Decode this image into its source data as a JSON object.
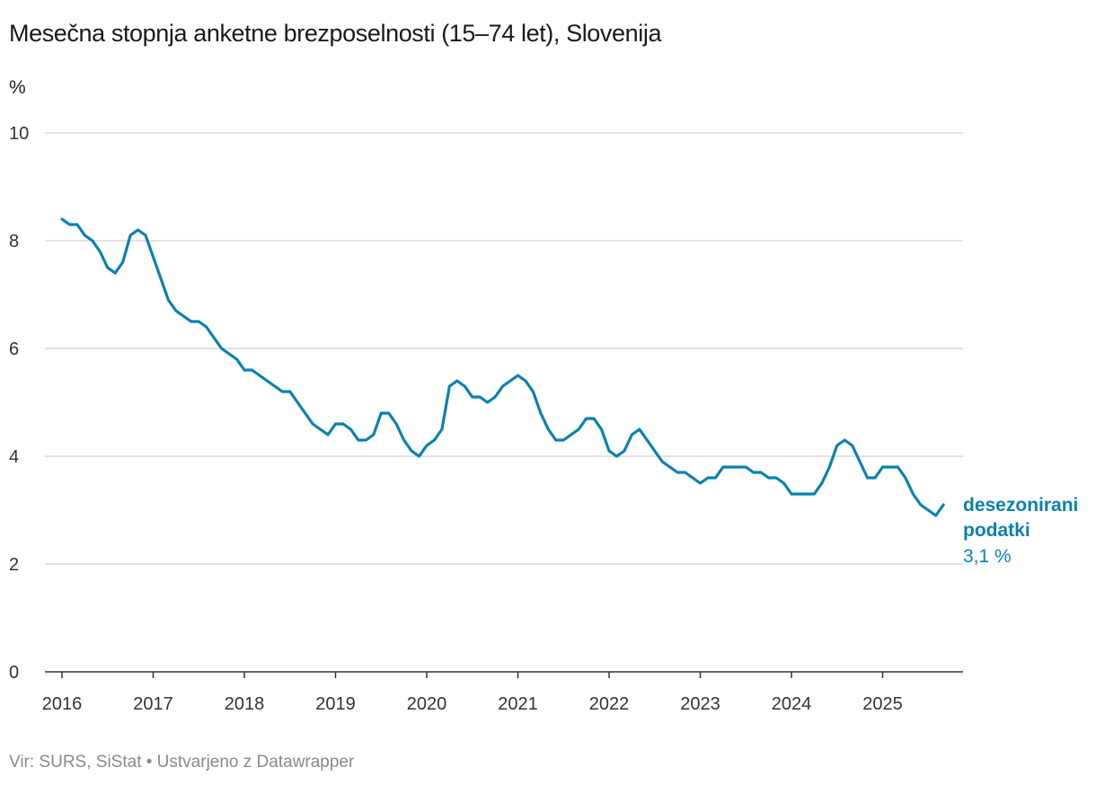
{
  "header": {
    "title": "Mesečna stopnja anketne brezposelnosti (15–74 let), Slovenija",
    "y_unit": "%"
  },
  "footer": {
    "source": "Vir: SURS, SiStat • Ustvarjeno z Datawrapper"
  },
  "colors": {
    "line": "#0a81b0",
    "grid": "#d0d0d0",
    "axis": "#333333"
  },
  "chart_data": {
    "type": "line",
    "title": "Mesečna stopnja anketne brezposelnosti (15–74 let), Slovenija",
    "ylabel": "%",
    "ylim": [
      0,
      10
    ],
    "yticks": [
      "0",
      "2",
      "4",
      "6",
      "8",
      "10"
    ],
    "xticks": [
      "2016",
      "2017",
      "2018",
      "2019",
      "2020",
      "2021",
      "2022",
      "2023",
      "2024",
      "2025"
    ],
    "grid": true,
    "series": [
      {
        "name": "desezonirani podatki",
        "end_label": "3,1 %",
        "start": "2016-01",
        "frequency": "monthly",
        "values": [
          8.4,
          8.3,
          8.3,
          8.1,
          8.0,
          7.8,
          7.5,
          7.4,
          7.6,
          8.1,
          8.2,
          8.1,
          7.7,
          7.3,
          6.9,
          6.7,
          6.6,
          6.5,
          6.5,
          6.4,
          6.2,
          6.0,
          5.9,
          5.8,
          5.6,
          5.6,
          5.5,
          5.4,
          5.3,
          5.2,
          5.2,
          5.0,
          4.8,
          4.6,
          4.5,
          4.4,
          4.6,
          4.6,
          4.5,
          4.3,
          4.3,
          4.4,
          4.8,
          4.8,
          4.6,
          4.3,
          4.1,
          4.0,
          4.2,
          4.3,
          4.5,
          5.3,
          5.4,
          5.3,
          5.1,
          5.1,
          5.0,
          5.1,
          5.3,
          5.4,
          5.5,
          5.4,
          5.2,
          4.8,
          4.5,
          4.3,
          4.3,
          4.4,
          4.5,
          4.7,
          4.7,
          4.5,
          4.1,
          4.0,
          4.1,
          4.4,
          4.5,
          4.3,
          4.1,
          3.9,
          3.8,
          3.7,
          3.7,
          3.6,
          3.5,
          3.6,
          3.6,
          3.8,
          3.8,
          3.8,
          3.8,
          3.7,
          3.7,
          3.6,
          3.6,
          3.5,
          3.3,
          3.3,
          3.3,
          3.3,
          3.5,
          3.8,
          4.2,
          4.3,
          4.2,
          3.9,
          3.6,
          3.6,
          3.8,
          3.8,
          3.8,
          3.6,
          3.3,
          3.1,
          3.0,
          2.9,
          3.1
        ]
      }
    ]
  }
}
